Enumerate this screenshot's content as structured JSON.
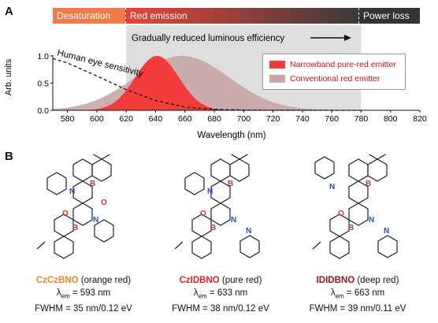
{
  "panels": {
    "a": "A",
    "b": "B"
  },
  "bands": {
    "desaturation": "Desaturation",
    "red_emission": "Red emission",
    "power_loss": "Power loss",
    "colors": {
      "desaturation": "#f07a4a",
      "red_start": "#e8453a",
      "red_end": "#3a3a3a",
      "power_loss": "#333333"
    }
  },
  "annotation": {
    "gradual": "Gradually reduced luminous efficiency",
    "human_eye": "Human eye sensitivity"
  },
  "legend": {
    "narrow": "Narrowband pure-red emitter",
    "conventional": "Conventional red emitter",
    "colors": {
      "narrow": "#f23c3c",
      "conventional": "#c9a6a6"
    }
  },
  "chart_data": {
    "type": "area",
    "xlabel": "Wavelength (nm)",
    "ylabel": "Arb. units",
    "xlim": [
      570,
      820
    ],
    "ylim": [
      0,
      1.1
    ],
    "x_ticks": [
      580,
      600,
      620,
      640,
      660,
      680,
      700,
      720,
      740,
      760,
      780,
      800,
      820
    ],
    "y_ticks": [
      0.0,
      0.5,
      1.0
    ],
    "shaded_region": [
      620,
      780
    ],
    "series": [
      {
        "name": "Conventional red emitter",
        "peak_nm": 658,
        "fwhm_nm": 75,
        "peak_value": 1.0,
        "color": "#c9a6a6"
      },
      {
        "name": "Narrowband pure-red emitter",
        "peak_nm": 641,
        "fwhm_nm": 35,
        "peak_value": 1.0,
        "color": "#f23c3c"
      },
      {
        "name": "Human eye sensitivity",
        "style": "dashed",
        "x": [
          570,
          580,
          600,
          620,
          640,
          660,
          680,
          700,
          720,
          740,
          760,
          780
        ],
        "y": [
          0.95,
          0.87,
          0.63,
          0.38,
          0.18,
          0.06,
          0.017,
          0.004,
          0.001,
          0.0003,
          0.0001,
          0.0
        ]
      }
    ]
  },
  "molecules": [
    {
      "name": "CzCzBNO",
      "descriptor": " (orange red)",
      "name_color": "#e8862a",
      "lambda_em": "593 nm",
      "fwhm": "35 nm/0.12 eV"
    },
    {
      "name": "CzIDBNO",
      "descriptor": " (pure red)",
      "name_color": "#e41f1f",
      "lambda_em": "633 nm",
      "fwhm": "38 nm/0.12 eV"
    },
    {
      "name": "IDIDBNO",
      "descriptor": " (deep red)",
      "name_color": "#8a1515",
      "lambda_em": "663 nm",
      "fwhm": "39 nm/0.11 eV"
    }
  ],
  "labels": {
    "lambda_prefix": "λ",
    "lambda_sub": "em",
    "equals": " = ",
    "fwhm_prefix": "FWHM = ",
    "atom_B": "B",
    "atom_N": "N",
    "atom_O": "O"
  }
}
